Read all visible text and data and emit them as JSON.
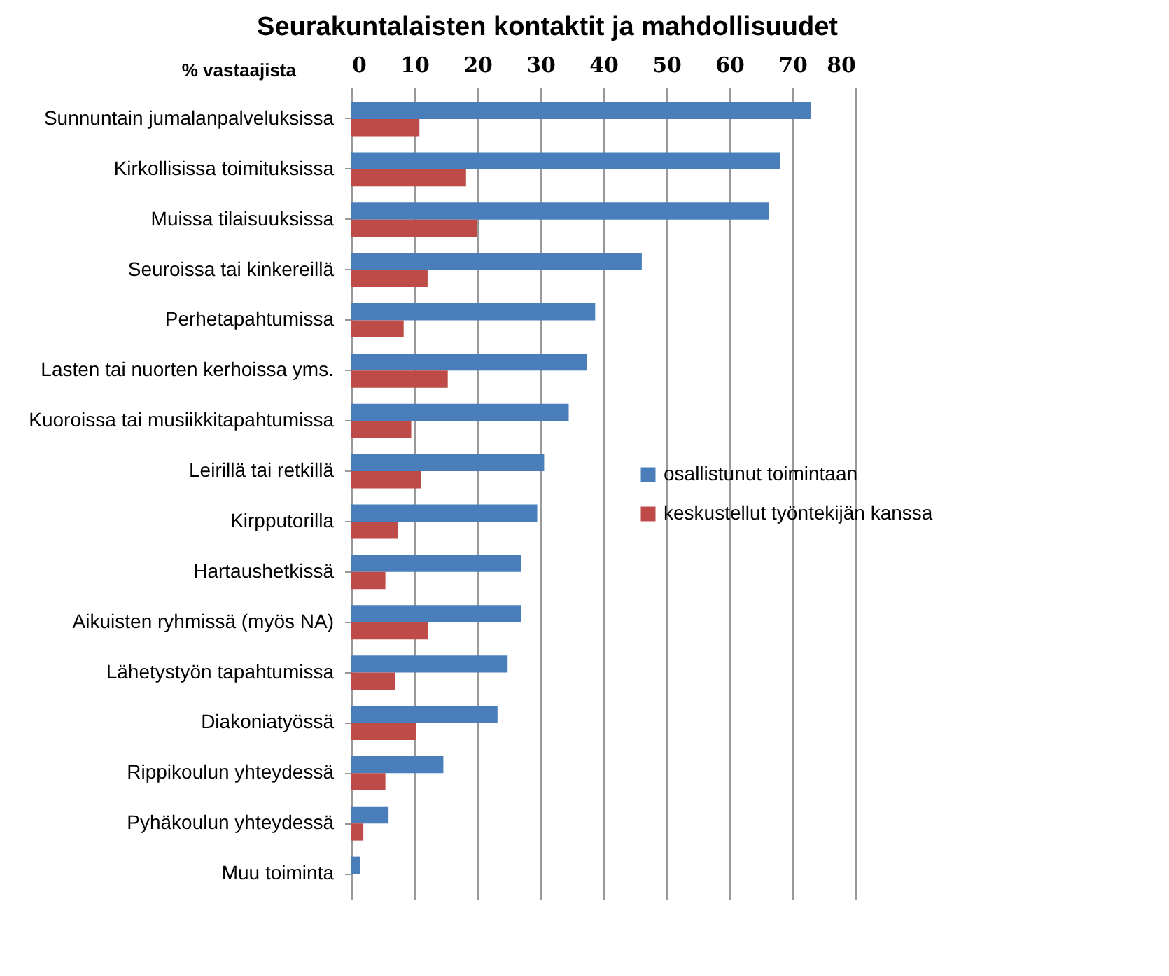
{
  "chart_data": {
    "type": "bar",
    "orientation": "horizontal",
    "title": "Seurakuntalaisten kontaktit ja mahdollisuudet",
    "xlabel": "% vastaajista",
    "categories": [
      "Sunnuntain jumalanpalveluksissa",
      "Kirkollisissa toimituksissa",
      "Muissa tilaisuuksissa",
      "Seuroissa tai kinkereillä",
      "Perhetapahtumissa",
      "Lasten tai nuorten kerhoissa yms.",
      "Kuoroissa tai musiikkitapahtumissa",
      "Leirillä tai retkillä",
      "Kirpputorilla",
      "Hartaushetkissä",
      "Aikuisten ryhmissä (myös NA)",
      "Lähetystyön tapahtumissa",
      "Diakoniatyössä",
      "Rippikoulun yhteydessä",
      "Pyhäkoulun yhteydessä",
      "Muu toiminta"
    ],
    "series": [
      {
        "name": "osallistunut toimintaan",
        "color": "#4a7ebb",
        "values": [
          73,
          68,
          66.3,
          46.1,
          38.7,
          37.4,
          34.5,
          30.6,
          29.5,
          26.9,
          26.9,
          24.8,
          23.2,
          14.6,
          5.9,
          1.4
        ]
      },
      {
        "name": "keskustellut työntekijän kanssa",
        "color": "#be4b48",
        "values": [
          10.8,
          18.2,
          19.9,
          12.1,
          8.3,
          15.3,
          9.5,
          11.1,
          7.4,
          5.4,
          12.2,
          6.9,
          10.3,
          5.4,
          1.9,
          null
        ]
      }
    ],
    "xlim": [
      0,
      80
    ],
    "xticks": [
      0,
      10,
      20,
      30,
      40,
      50,
      60,
      70,
      80
    ],
    "grid": "x",
    "legend": "right"
  }
}
